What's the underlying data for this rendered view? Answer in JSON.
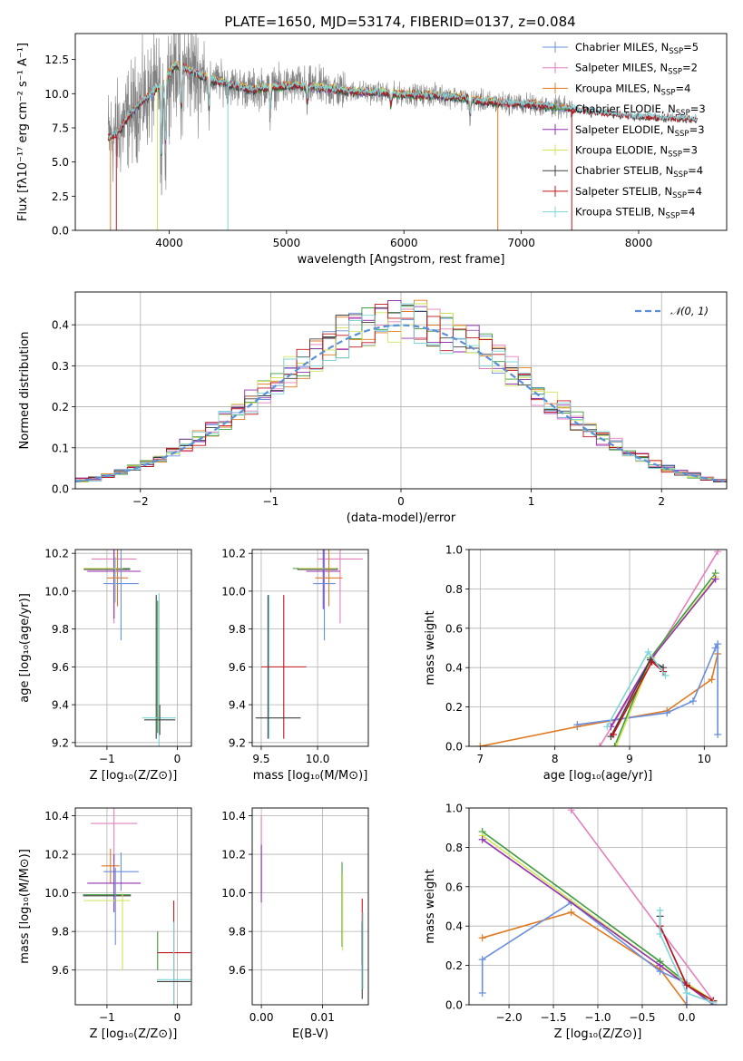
{
  "title": "PLATE=1650, MJD=53174, FIBERID=0137, z=0.084",
  "colors": {
    "chab_miles": "#6a8fdc",
    "salp_miles": "#e37fbc",
    "krou_miles": "#e07a22",
    "chab_elodie": "#3c9b3c",
    "salp_elodie": "#9432b0",
    "krou_elodie": "#d2e35a",
    "chab_stelib": "#404040",
    "salp_stelib": "#c0161c",
    "krou_stelib": "#7fd4d8",
    "data_gray": "#808080",
    "gaussian": "#5b8fd6",
    "grid": "#b0b0b0"
  },
  "legend": [
    {
      "key": "chab_miles",
      "label": "Chabrier MILES, N",
      "sub": "SSP",
      "tail": "=5"
    },
    {
      "key": "salp_miles",
      "label": "Salpeter MILES, N",
      "sub": "SSP",
      "tail": "=2"
    },
    {
      "key": "krou_miles",
      "label": "Kroupa MILES, N",
      "sub": "SSP",
      "tail": "=4"
    },
    {
      "key": "chab_elodie",
      "label": "Chabrier ELODIE, N",
      "sub": "SSP",
      "tail": "=3"
    },
    {
      "key": "salp_elodie",
      "label": "Salpeter ELODIE, N",
      "sub": "SSP",
      "tail": "=3"
    },
    {
      "key": "krou_elodie",
      "label": "Kroupa ELODIE, N",
      "sub": "SSP",
      "tail": "=3"
    },
    {
      "key": "chab_stelib",
      "label": "Chabrier STELIB, N",
      "sub": "SSP",
      "tail": "=4"
    },
    {
      "key": "salp_stelib",
      "label": "Salpeter STELIB, N",
      "sub": "SSP",
      "tail": "=4"
    },
    {
      "key": "krou_stelib",
      "label": "Kroupa STELIB, N",
      "sub": "SSP",
      "tail": "=4"
    }
  ],
  "chart_data": [
    {
      "id": "spectrum",
      "type": "line",
      "xlabel": "wavelength [Angstrom, rest frame]",
      "ylabel": "Flux [fλ10⁻¹⁷ erg cm⁻² s⁻¹ A⁻¹]",
      "xlim": [
        3200,
        8750
      ],
      "ylim": [
        0,
        14.4
      ],
      "xticks": [
        4000,
        5000,
        6000,
        7000,
        8000
      ],
      "yticks": [
        0.0,
        2.5,
        5.0,
        7.5,
        10.0,
        12.5
      ],
      "continuum": [
        [
          3480,
          6.8
        ],
        [
          3550,
          7.0
        ],
        [
          3650,
          8.3
        ],
        [
          3750,
          9.3
        ],
        [
          3850,
          10.0
        ],
        [
          3950,
          10.8
        ],
        [
          4050,
          12.1
        ],
        [
          4150,
          11.8
        ],
        [
          4300,
          11.2
        ],
        [
          4500,
          10.7
        ],
        [
          4700,
          10.3
        ],
        [
          4900,
          10.5
        ],
        [
          5100,
          10.6
        ],
        [
          5300,
          10.4
        ],
        [
          5500,
          10.2
        ],
        [
          5700,
          10.1
        ],
        [
          5900,
          10.0
        ],
        [
          6100,
          9.9
        ],
        [
          6300,
          9.9
        ],
        [
          6500,
          9.7
        ],
        [
          6700,
          9.4
        ],
        [
          6900,
          9.3
        ],
        [
          7100,
          9.2
        ],
        [
          7300,
          9.0
        ],
        [
          7500,
          8.8
        ],
        [
          7700,
          8.6
        ],
        [
          7900,
          8.4
        ],
        [
          8100,
          8.3
        ],
        [
          8300,
          8.2
        ],
        [
          8500,
          8.1
        ]
      ]
    },
    {
      "id": "residuals",
      "type": "histogram",
      "xlabel": "(data-model)/error",
      "ylabel": "Normed distribution",
      "xlim": [
        -2.5,
        2.5
      ],
      "ylim": [
        0,
        0.48
      ],
      "xticks": [
        -2,
        -1,
        0,
        1,
        2
      ],
      "yticks": [
        0.0,
        0.1,
        0.2,
        0.3,
        0.4
      ],
      "bin_width": 0.1,
      "gaussian_label": "𝒩(0, 1)",
      "gaussian": "N(0,1) pdf"
    },
    {
      "id": "age_vs_Z",
      "type": "errorbar",
      "xlabel": "Z [log₁₀(Z/Z⊙)]",
      "ylabel": "age  [log₁₀(age/yr)]",
      "xlim": [
        -1.45,
        0.2
      ],
      "ylim": [
        9.18,
        10.22
      ],
      "xticks": [
        -1,
        0
      ],
      "yticks": [
        9.2,
        9.4,
        9.6,
        9.8,
        10.0,
        10.2
      ],
      "points": [
        {
          "key": "salp_miles",
          "x": -0.9,
          "xerr": 0.32,
          "y": 10.17,
          "yerr": 0.34
        },
        {
          "key": "chab_elodie",
          "x": -1.0,
          "xerr": 0.33,
          "y": 10.12,
          "yerr": 0.0
        },
        {
          "key": "chab_stelib",
          "x": -1.0,
          "xerr": 0.33,
          "y": 10.115,
          "yerr": 0.0
        },
        {
          "key": "salp_elodie",
          "x": -0.9,
          "xerr": 0.38,
          "y": 10.105,
          "yerr": 0.25
        },
        {
          "key": "krou_elodie",
          "x": -1.05,
          "xerr": 0.28,
          "y": 10.12,
          "yerr": 0.0
        },
        {
          "key": "krou_miles",
          "x": -0.85,
          "xerr": 0.15,
          "y": 10.07,
          "yerr": 0.15
        },
        {
          "key": "chab_miles",
          "x": -0.8,
          "xerr": 0.25,
          "y": 10.04,
          "yerr": 0.3
        },
        {
          "key": "krou_stelib",
          "x": -0.88,
          "xerr": 0.0,
          "y": 10.06,
          "yerr": 0.12
        },
        {
          "key": "chab_stelib",
          "x": -0.3,
          "xerr": 0.0,
          "y": 9.6,
          "yerr": 0.38
        },
        {
          "key": "krou_stelib",
          "x": -0.26,
          "xerr": 0.24,
          "y": 9.33,
          "yerr": 0.66
        },
        {
          "key": "chab_stelib",
          "x": -0.25,
          "xerr": 0.22,
          "y": 9.32,
          "yerr": 0.08
        },
        {
          "key": "chab_elodie",
          "x": -0.28,
          "xerr": 0.0,
          "y": 9.6,
          "yerr": 0.35
        }
      ]
    },
    {
      "id": "age_vs_mass",
      "type": "errorbar",
      "xlabel": "mass [log₁₀(M/M⊙)]",
      "ylabel": "",
      "xlim": [
        9.42,
        10.45
      ],
      "ylim": [
        9.18,
        10.22
      ],
      "xticks": [
        9.5,
        10.0
      ],
      "yticks": [
        9.2,
        9.4,
        9.6,
        9.8,
        10.0,
        10.2
      ],
      "points": [
        {
          "key": "salp_miles",
          "x": 10.2,
          "xerr": 0.2,
          "y": 10.17,
          "yerr": 0.34
        },
        {
          "key": "chab_elodie",
          "x": 9.98,
          "xerr": 0.2,
          "y": 10.12,
          "yerr": 0.0
        },
        {
          "key": "chab_stelib",
          "x": 10.0,
          "xerr": 0.18,
          "y": 10.115,
          "yerr": 0.0
        },
        {
          "key": "salp_elodie",
          "x": 10.05,
          "xerr": 0.15,
          "y": 10.105,
          "yerr": 0.2
        },
        {
          "key": "krou_elodie",
          "x": 10.0,
          "xerr": 0.17,
          "y": 10.12,
          "yerr": 0.0
        },
        {
          "key": "krou_miles",
          "x": 10.1,
          "xerr": 0.12,
          "y": 10.07,
          "yerr": 0.15
        },
        {
          "key": "chab_miles",
          "x": 10.06,
          "xerr": 0.1,
          "y": 10.04,
          "yerr": 0.3
        },
        {
          "key": "krou_stelib",
          "x": 9.57,
          "xerr": 0.0,
          "y": 9.6,
          "yerr": 0.38
        },
        {
          "key": "chab_stelib",
          "x": 9.56,
          "xerr": 0.0,
          "y": 9.6,
          "yerr": 0.38
        },
        {
          "key": "salp_stelib",
          "x": 9.7,
          "xerr": 0.2,
          "y": 9.6,
          "yerr": 0.38
        },
        {
          "key": "chab_stelib",
          "x": 9.65,
          "xerr": 0.2,
          "y": 9.33,
          "yerr": 0.0
        }
      ]
    },
    {
      "id": "mass_weight_vs_age",
      "type": "line",
      "xlabel": "age  [log₁₀(age/yr)]",
      "ylabel": "mass weight",
      "xlim": [
        6.85,
        10.3
      ],
      "ylim": [
        0,
        1.0
      ],
      "xticks": [
        7,
        8,
        9,
        10
      ],
      "yticks": [
        0.0,
        0.2,
        0.4,
        0.6,
        0.8,
        1.0
      ],
      "series": [
        {
          "key": "salp_miles",
          "x": [
            8.6,
            10.18
          ],
          "y": [
            0.0,
            0.99
          ]
        },
        {
          "key": "krou_miles",
          "x": [
            7.0,
            8.3,
            9.5,
            10.1,
            10.18
          ],
          "y": [
            0.0,
            0.1,
            0.18,
            0.34,
            0.47
          ]
        },
        {
          "key": "chab_miles",
          "x": [
            8.3,
            9.5,
            9.85,
            10.15,
            10.18,
            10.18
          ],
          "y": [
            0.11,
            0.17,
            0.23,
            0.5,
            0.52,
            0.06
          ]
        },
        {
          "key": "chab_elodie",
          "x": [
            8.8,
            9.28,
            10.15
          ],
          "y": [
            0.0,
            0.45,
            0.88
          ]
        },
        {
          "key": "krou_elodie",
          "x": [
            8.82,
            9.3,
            10.15
          ],
          "y": [
            0.0,
            0.45,
            0.86
          ]
        },
        {
          "key": "salp_elodie",
          "x": [
            8.75,
            9.28,
            10.15
          ],
          "y": [
            0.1,
            0.44,
            0.85
          ]
        },
        {
          "key": "chab_stelib",
          "x": [
            8.75,
            9.28,
            9.45
          ],
          "y": [
            0.05,
            0.44,
            0.4
          ]
        },
        {
          "key": "salp_stelib",
          "x": [
            8.78,
            9.3,
            9.45
          ],
          "y": [
            0.06,
            0.43,
            0.38
          ]
        },
        {
          "key": "krou_stelib",
          "x": [
            8.7,
            9.25,
            9.48
          ],
          "y": [
            0.1,
            0.48,
            0.36
          ]
        }
      ]
    },
    {
      "id": "mass_vs_Z",
      "type": "errorbar",
      "xlabel": "Z [log₁₀(Z/Z⊙)]",
      "ylabel": "mass [log₁₀(M/M⊙)]",
      "xlim": [
        -1.45,
        0.2
      ],
      "ylim": [
        9.42,
        10.44
      ],
      "xticks": [
        -1,
        0
      ],
      "yticks": [
        9.6,
        9.8,
        10.0,
        10.2,
        10.4
      ],
      "points": [
        {
          "key": "salp_miles",
          "x": -0.9,
          "xerr": 0.33,
          "y": 10.36,
          "yerr": 0.2
        },
        {
          "key": "krou_miles",
          "x": -0.95,
          "xerr": 0.13,
          "y": 10.14,
          "yerr": 0.09
        },
        {
          "key": "chab_miles",
          "x": -0.8,
          "xerr": 0.25,
          "y": 10.11,
          "yerr": 0.1
        },
        {
          "key": "salp_elodie",
          "x": -0.9,
          "xerr": 0.38,
          "y": 10.05,
          "yerr": 0.15
        },
        {
          "key": "chab_elodie",
          "x": -1.0,
          "xerr": 0.34,
          "y": 9.99,
          "yerr": 0.0
        },
        {
          "key": "chab_stelib",
          "x": -1.0,
          "xerr": 0.34,
          "y": 9.985,
          "yerr": 0.0
        },
        {
          "key": "krou_elodie",
          "x": -1.0,
          "xerr": 0.33,
          "y": 9.96,
          "yerr": 0.0
        },
        {
          "key": "krou_elodie",
          "x": -0.78,
          "xerr": 0.0,
          "y": 9.8,
          "yerr": 0.2
        },
        {
          "key": "chab_miles",
          "x": -0.88,
          "xerr": 0.0,
          "y": 9.93,
          "yerr": 0.2
        },
        {
          "key": "salp_stelib",
          "x": -0.05,
          "xerr": 0.24,
          "y": 9.69,
          "yerr": 0.27
        },
        {
          "key": "krou_stelib",
          "x": -0.05,
          "xerr": 0.24,
          "y": 9.55,
          "yerr": 0.3
        },
        {
          "key": "chab_stelib",
          "x": -0.05,
          "xerr": 0.24,
          "y": 9.54,
          "yerr": 0.0
        },
        {
          "key": "chab_elodie",
          "x": -0.28,
          "xerr": 0.0,
          "y": 9.7,
          "yerr": 0.1
        }
      ]
    },
    {
      "id": "mass_vs_ebv",
      "type": "errorbar",
      "xlabel": "E(B-V)",
      "ylabel": "",
      "xlim": [
        -0.0015,
        0.0175
      ],
      "ylim": [
        9.42,
        10.44
      ],
      "xticks": [
        0.0,
        0.01
      ],
      "yticks": [
        9.6,
        9.8,
        10.0,
        10.2,
        10.4
      ],
      "points": [
        {
          "key": "salp_miles",
          "x": 0.0,
          "xerr": 0.0,
          "y": 10.2,
          "yerr": 0.2
        },
        {
          "key": "salp_elodie",
          "x": 0.0,
          "xerr": 0.0,
          "y": 10.1,
          "yerr": 0.15
        },
        {
          "key": "chab_elodie",
          "x": 0.0132,
          "xerr": 0.0,
          "y": 9.94,
          "yerr": 0.22
        },
        {
          "key": "krou_elodie",
          "x": 0.0133,
          "xerr": 0.0,
          "y": 9.9,
          "yerr": 0.2
        },
        {
          "key": "salp_stelib",
          "x": 0.0165,
          "xerr": 0.0,
          "y": 9.8,
          "yerr": 0.17
        },
        {
          "key": "chab_stelib",
          "x": 0.0165,
          "xerr": 0.0,
          "y": 9.65,
          "yerr": 0.2
        },
        {
          "key": "krou_stelib",
          "x": 0.0166,
          "xerr": 0.0,
          "y": 9.7,
          "yerr": 0.2
        }
      ]
    },
    {
      "id": "mass_weight_vs_Z",
      "type": "line",
      "xlabel": "Z [log₁₀(Z/Z⊙)]",
      "ylabel": "mass weight",
      "xlim": [
        -2.45,
        0.45
      ],
      "ylim": [
        0,
        1.0
      ],
      "xticks": [
        -2.0,
        -1.5,
        -1.0,
        -0.5,
        0.0
      ],
      "yticks": [
        0.0,
        0.2,
        0.4,
        0.6,
        0.8,
        1.0
      ],
      "series": [
        {
          "key": "salp_miles",
          "x": [
            -1.3,
            0.3
          ],
          "y": [
            0.99,
            0.02
          ]
        },
        {
          "key": "krou_miles",
          "x": [
            -2.3,
            -1.3,
            -0.3,
            0.0
          ],
          "y": [
            0.34,
            0.47,
            0.18,
            0.0
          ]
        },
        {
          "key": "chab_miles",
          "x": [
            -2.3,
            -2.3,
            -1.3,
            -0.3,
            0.0,
            0.0
          ],
          "y": [
            0.06,
            0.23,
            0.52,
            0.17,
            0.11,
            0.0
          ]
        },
        {
          "key": "chab_elodie",
          "x": [
            -2.3,
            -0.3,
            0.3
          ],
          "y": [
            0.88,
            0.22,
            0.0
          ]
        },
        {
          "key": "krou_elodie",
          "x": [
            -2.3,
            -0.3,
            0.3
          ],
          "y": [
            0.86,
            0.2,
            0.02
          ]
        },
        {
          "key": "salp_elodie",
          "x": [
            -2.3,
            -0.3,
            0.3
          ],
          "y": [
            0.84,
            0.2,
            0.0
          ]
        },
        {
          "key": "chab_stelib",
          "x": [
            -0.3,
            -0.3,
            0.0,
            0.3
          ],
          "y": [
            0.45,
            0.4,
            0.1,
            0.02
          ]
        },
        {
          "key": "salp_stelib",
          "x": [
            -0.3,
            0.0,
            0.3
          ],
          "y": [
            0.4,
            0.1,
            0.02
          ]
        },
        {
          "key": "krou_stelib",
          "x": [
            -0.3,
            -0.3,
            0.0,
            0.3
          ],
          "y": [
            0.48,
            0.36,
            0.06,
            0.01
          ]
        }
      ]
    }
  ]
}
